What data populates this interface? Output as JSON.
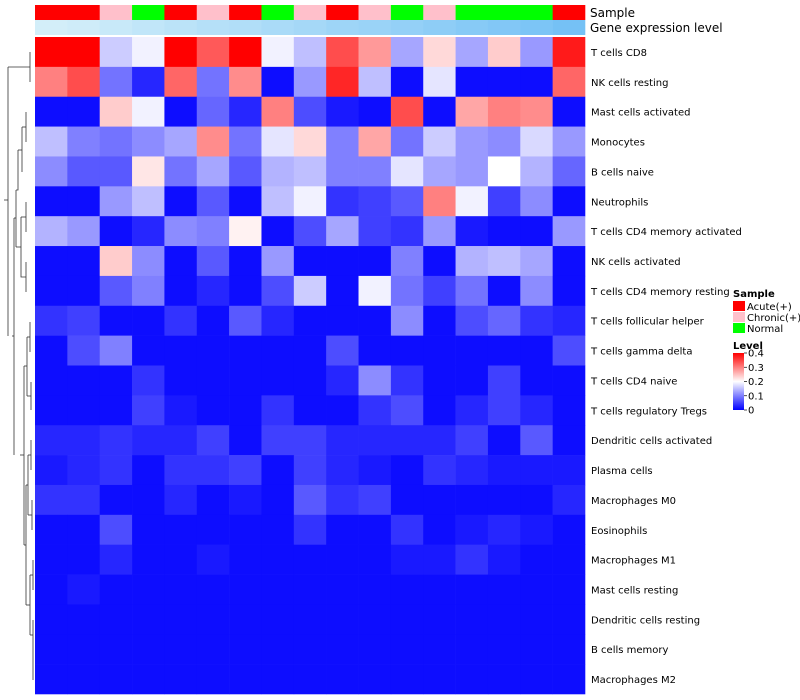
{
  "chart_data": {
    "type": "heatmap",
    "annotation_titles": [
      "Sample",
      "Gene expression level"
    ],
    "sample_legend": {
      "title": "Sample",
      "entries": [
        {
          "label": "Acute(+)",
          "color": "#ff0000"
        },
        {
          "label": "Chronic(+)",
          "color": "#ffc0cb"
        },
        {
          "label": "Normal",
          "color": "#00ff00"
        }
      ]
    },
    "level_legend": {
      "title": "Level",
      "min": 0,
      "max": 0.4,
      "ticks": [
        "0",
        "0.1",
        "0.2",
        "0.3",
        "0.4"
      ],
      "colors": [
        "#0000ff",
        "#ffffff",
        "#ff0000"
      ]
    },
    "sample_groups": [
      "Acute(+)",
      "Acute(+)",
      "Chronic(+)",
      "Normal",
      "Acute(+)",
      "Chronic(+)",
      "Acute(+)",
      "Normal",
      "Chronic(+)",
      "Acute(+)",
      "Chronic(+)",
      "Normal",
      "Chronic(+)",
      "Normal",
      "Normal",
      "Normal",
      "Acute(+)"
    ],
    "expression_annotation": [
      0.12,
      0.16,
      0.22,
      0.28,
      0.33,
      0.38,
      0.42,
      0.48,
      0.52,
      0.58,
      0.62,
      0.67,
      0.72,
      0.78,
      0.83,
      0.88,
      0.94
    ],
    "rows": [
      "T cells CD8",
      "NK cells resting",
      "Mast cells activated",
      "Monocytes",
      "B cells naive",
      "Neutrophils",
      "T cells CD4 memory activated",
      "NK cells activated",
      "T cells CD4 memory resting",
      "T cells follicular helper",
      "T cells gamma delta",
      "T cells CD4 naive",
      "T cells regulatory  Tregs",
      "Dendritic cells activated",
      "Plasma cells",
      "Macrophages M0",
      "Eosinophils",
      "Macrophages M1",
      "Mast cells resting",
      "Dendritic cells resting",
      "B cells memory",
      "Macrophages M2"
    ],
    "values": [
      [
        0.4,
        0.4,
        0.16,
        0.19,
        0.4,
        0.33,
        0.4,
        0.19,
        0.15,
        0.34,
        0.28,
        0.13,
        0.23,
        0.13,
        0.24,
        0.12,
        0.38
      ],
      [
        0.3,
        0.34,
        0.09,
        0.03,
        0.32,
        0.09,
        0.29,
        0.01,
        0.12,
        0.37,
        0.15,
        0.01,
        0.18,
        0.01,
        0.01,
        0.01,
        0.32
      ],
      [
        0.01,
        0.01,
        0.24,
        0.19,
        0.01,
        0.08,
        0.03,
        0.3,
        0.06,
        0.02,
        0.01,
        0.34,
        0.01,
        0.27,
        0.3,
        0.29,
        0.01
      ],
      [
        0.15,
        0.1,
        0.09,
        0.11,
        0.13,
        0.29,
        0.09,
        0.18,
        0.23,
        0.1,
        0.27,
        0.09,
        0.16,
        0.12,
        0.11,
        0.17,
        0.12
      ],
      [
        0.11,
        0.07,
        0.07,
        0.22,
        0.09,
        0.13,
        0.07,
        0.14,
        0.15,
        0.1,
        0.1,
        0.18,
        0.13,
        0.12,
        0.2,
        0.14,
        0.08
      ],
      [
        0.01,
        0.01,
        0.12,
        0.15,
        0.01,
        0.07,
        0.01,
        0.15,
        0.19,
        0.04,
        0.05,
        0.07,
        0.3,
        0.19,
        0.05,
        0.11,
        0.01
      ],
      [
        0.14,
        0.12,
        0.01,
        0.03,
        0.11,
        0.1,
        0.21,
        0.01,
        0.06,
        0.13,
        0.05,
        0.04,
        0.12,
        0.02,
        0.01,
        0.01,
        0.12
      ],
      [
        0.01,
        0.01,
        0.24,
        0.11,
        0.01,
        0.07,
        0.01,
        0.12,
        0.01,
        0.01,
        0.01,
        0.1,
        0.01,
        0.14,
        0.15,
        0.13,
        0.01
      ],
      [
        0.01,
        0.01,
        0.07,
        0.1,
        0.01,
        0.03,
        0.01,
        0.06,
        0.16,
        0.01,
        0.19,
        0.09,
        0.05,
        0.09,
        0.01,
        0.11,
        0.01
      ],
      [
        0.04,
        0.05,
        0.01,
        0.01,
        0.04,
        0.01,
        0.07,
        0.03,
        0.01,
        0.01,
        0.01,
        0.11,
        0.01,
        0.06,
        0.08,
        0.04,
        0.03
      ],
      [
        0.01,
        0.06,
        0.1,
        0.01,
        0.01,
        0.01,
        0.01,
        0.01,
        0.01,
        0.06,
        0.01,
        0.01,
        0.01,
        0.01,
        0.01,
        0.01,
        0.06
      ],
      [
        0.01,
        0.01,
        0.01,
        0.04,
        0.01,
        0.01,
        0.01,
        0.01,
        0.01,
        0.03,
        0.11,
        0.04,
        0.01,
        0.01,
        0.05,
        0.01,
        0.01
      ],
      [
        0.01,
        0.01,
        0.01,
        0.05,
        0.02,
        0.01,
        0.01,
        0.04,
        0.01,
        0.01,
        0.04,
        0.06,
        0.01,
        0.03,
        0.05,
        0.03,
        0.01
      ],
      [
        0.03,
        0.03,
        0.04,
        0.03,
        0.03,
        0.05,
        0.01,
        0.05,
        0.05,
        0.03,
        0.03,
        0.03,
        0.03,
        0.05,
        0.01,
        0.07,
        0.01
      ],
      [
        0.02,
        0.03,
        0.04,
        0.01,
        0.04,
        0.04,
        0.05,
        0.01,
        0.05,
        0.03,
        0.02,
        0.01,
        0.04,
        0.03,
        0.02,
        0.02,
        0.02
      ],
      [
        0.04,
        0.04,
        0.01,
        0.01,
        0.03,
        0.01,
        0.02,
        0.01,
        0.07,
        0.04,
        0.05,
        0.01,
        0.01,
        0.01,
        0.01,
        0.01,
        0.03
      ],
      [
        0.01,
        0.01,
        0.06,
        0.01,
        0.01,
        0.01,
        0.01,
        0.01,
        0.04,
        0.01,
        0.01,
        0.04,
        0.01,
        0.02,
        0.03,
        0.02,
        0.01
      ],
      [
        0.01,
        0.01,
        0.03,
        0.01,
        0.01,
        0.02,
        0.01,
        0.01,
        0.01,
        0.01,
        0.01,
        0.02,
        0.02,
        0.04,
        0.02,
        0.01,
        0.01
      ],
      [
        0.01,
        0.02,
        0.01,
        0.01,
        0.01,
        0.01,
        0.01,
        0.01,
        0.01,
        0.01,
        0.01,
        0.01,
        0.01,
        0.01,
        0.01,
        0.01,
        0.01
      ],
      [
        0.01,
        0.01,
        0.01,
        0.01,
        0.01,
        0.01,
        0.01,
        0.01,
        0.01,
        0.01,
        0.01,
        0.01,
        0.01,
        0.01,
        0.01,
        0.01,
        0.01
      ],
      [
        0.01,
        0.01,
        0.01,
        0.01,
        0.01,
        0.01,
        0.01,
        0.01,
        0.01,
        0.01,
        0.01,
        0.01,
        0.01,
        0.01,
        0.01,
        0.01,
        0.01
      ],
      [
        0.01,
        0.01,
        0.01,
        0.01,
        0.01,
        0.01,
        0.01,
        0.01,
        0.01,
        0.01,
        0.01,
        0.01,
        0.01,
        0.01,
        0.01,
        0.01,
        0.01
      ]
    ]
  }
}
